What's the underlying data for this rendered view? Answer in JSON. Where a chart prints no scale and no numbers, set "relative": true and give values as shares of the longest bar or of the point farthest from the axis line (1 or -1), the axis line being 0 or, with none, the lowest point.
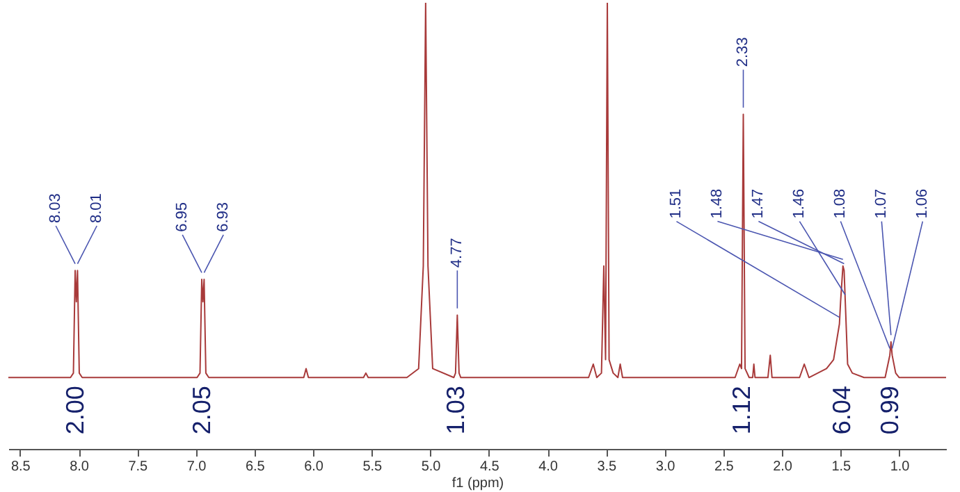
{
  "chart_data": {
    "type": "line",
    "xlabel": "f1 (ppm)",
    "relative": true,
    "xlim": [
      8.6,
      0.6
    ],
    "xticks": [
      8.5,
      {
        "value": 8,
        "label": "8.0"
      },
      7.5,
      {
        "value": 7,
        "label": "7.0"
      },
      6.5,
      {
        "value": 6,
        "label": "6.0"
      },
      5.5,
      {
        "value": 5,
        "label": "5.0"
      },
      4.5,
      {
        "value": 4,
        "label": "4.0"
      },
      3.5,
      {
        "value": 3,
        "label": "3.0"
      },
      2.5,
      {
        "value": 2,
        "label": "2.0"
      },
      1.5,
      {
        "value": 1,
        "label": "1.0"
      }
    ],
    "series": [
      {
        "color": "#a83a3a",
        "x": [
          8.6,
          8.07,
          8.045,
          8.03,
          8.02,
          8.01,
          7.995,
          7.97,
          6.99,
          6.965,
          6.95,
          6.94,
          6.93,
          6.915,
          6.89,
          6.08,
          6.06,
          6.04,
          5.57,
          5.55,
          5.53,
          5.2,
          5.1,
          5.06,
          5.04,
          5.02,
          4.98,
          4.8,
          4.785,
          4.77,
          4.755,
          4.74,
          3.65,
          3.61,
          3.58,
          3.54,
          3.52,
          3.505,
          3.49,
          3.475,
          3.44,
          3.4,
          3.38,
          3.36,
          2.4,
          2.36,
          2.345,
          2.33,
          2.315,
          2.28,
          2.25,
          2.24,
          2.23,
          2.12,
          2.1,
          2.085,
          1.85,
          1.81,
          1.77,
          1.62,
          1.56,
          1.51,
          1.5,
          1.48,
          1.47,
          1.46,
          1.44,
          1.4,
          1.3,
          1.12,
          1.08,
          1.07,
          1.06,
          1.03,
          1.0,
          0.6
        ],
        "values": [
          0.16,
          0.16,
          0.17,
          0.4,
          0.33,
          0.4,
          0.17,
          0.16,
          0.16,
          0.17,
          0.38,
          0.33,
          0.38,
          0.17,
          0.16,
          0.16,
          0.18,
          0.16,
          0.16,
          0.17,
          0.16,
          0.16,
          0.18,
          0.41,
          1,
          0.41,
          0.18,
          0.16,
          0.17,
          0.3,
          0.17,
          0.16,
          0.16,
          0.19,
          0.16,
          0.17,
          0.41,
          0.2,
          1,
          0.2,
          0.17,
          0.16,
          0.19,
          0.16,
          0.16,
          0.19,
          0.18,
          0.75,
          0.18,
          0.16,
          0.16,
          0.19,
          0.16,
          0.16,
          0.21,
          0.16,
          0.16,
          0.19,
          0.16,
          0.18,
          0.2,
          0.28,
          0.33,
          0.41,
          0.4,
          0.33,
          0.19,
          0.17,
          0.16,
          0.16,
          0.21,
          0.24,
          0.21,
          0.17,
          0.16,
          0.16
        ]
      }
    ],
    "annotations": [
      {
        "text": "8.03",
        "x": 8.03,
        "y": 0.4
      },
      {
        "text": "8.01",
        "x": 8.01,
        "y": 0.4
      },
      {
        "text": "6.95",
        "x": 6.95,
        "y": 0.38
      },
      {
        "text": "6.93",
        "x": 6.93,
        "y": 0.38
      },
      {
        "text": "4.77",
        "x": 4.77,
        "y": 0.3
      },
      {
        "text": "2.33",
        "x": 2.33,
        "y": 0.75
      },
      {
        "text": "1.51",
        "x": 1.51,
        "y": 0.28
      },
      {
        "text": "1.48",
        "x": 1.48,
        "y": 0.41
      },
      {
        "text": "1.47",
        "x": 1.47,
        "y": 0.4
      },
      {
        "text": "1.46",
        "x": 1.46,
        "y": 0.33
      },
      {
        "text": "1.08",
        "x": 1.08,
        "y": 0.21
      },
      {
        "text": "1.07",
        "x": 1.07,
        "y": 0.24
      },
      {
        "text": "1.06",
        "x": 1.06,
        "y": 0.21
      },
      "2.00",
      "2.05",
      "1.03",
      "1.12",
      "6.04",
      "0.99"
    ]
  }
}
